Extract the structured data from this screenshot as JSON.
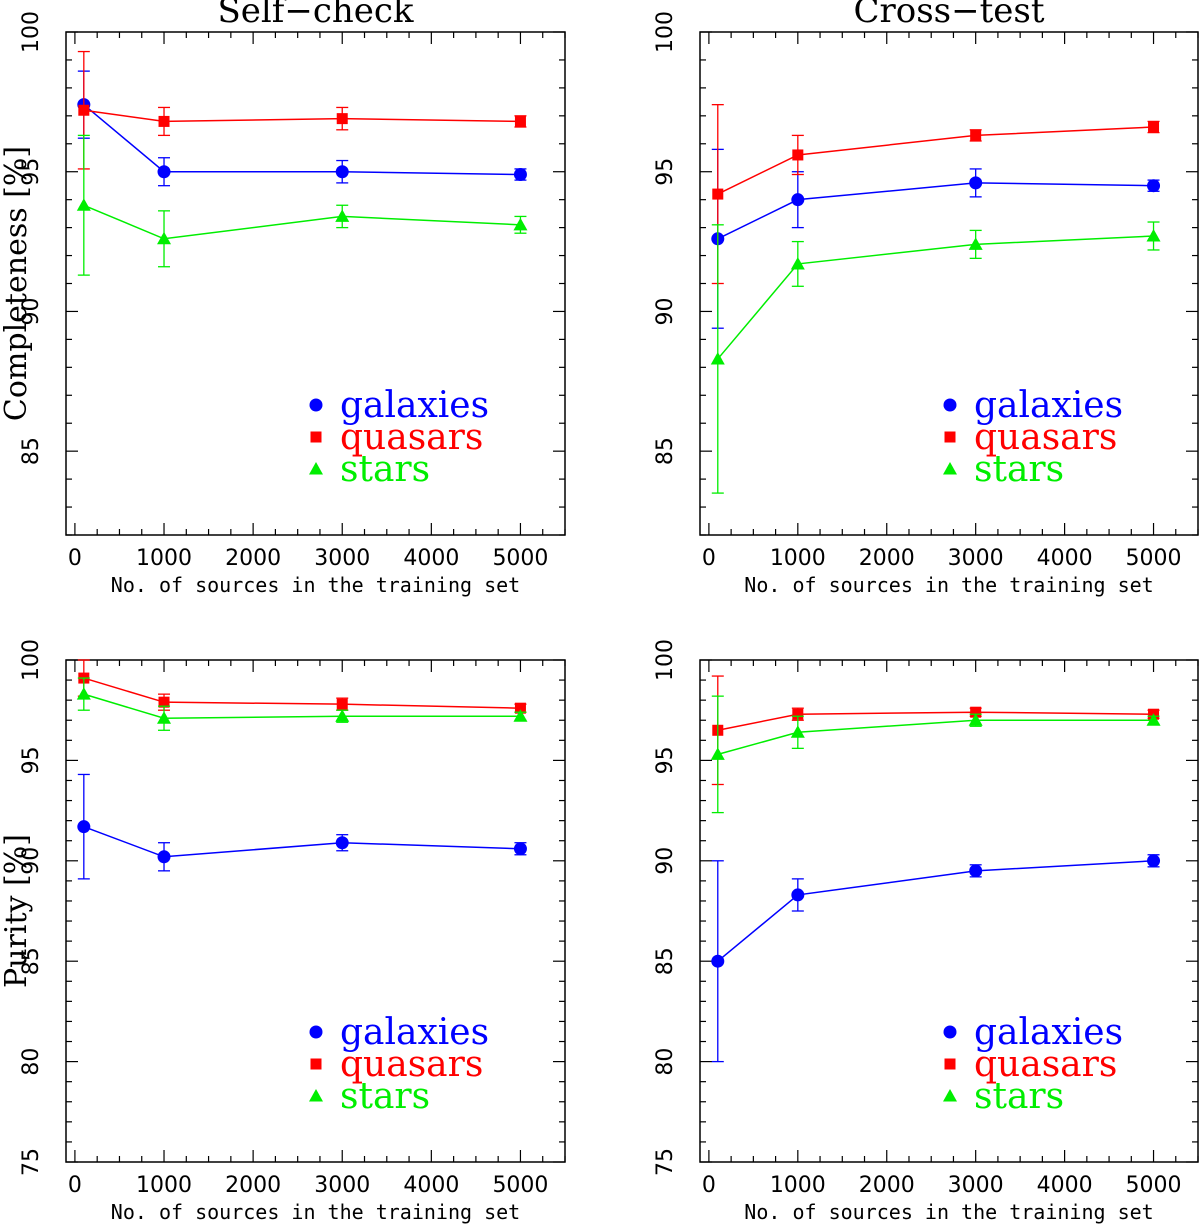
{
  "chart_data": [
    {
      "type": "line",
      "title": "Self−check",
      "xlabel": "No. of sources in the training set",
      "ylabel": "Completeness [%]",
      "xlim": [
        -100,
        5500
      ],
      "ylim": [
        82,
        100
      ],
      "xticks": [
        0,
        1000,
        2000,
        3000,
        4000,
        5000
      ],
      "yticks": [
        85,
        90,
        95,
        100
      ],
      "legend_position": "lower-right",
      "series": [
        {
          "name": "galaxies",
          "color": "#0000ff",
          "marker": "circle",
          "x": [
            100,
            1000,
            3000,
            5000
          ],
          "y": [
            97.4,
            95.0,
            95.0,
            94.9
          ],
          "err": [
            1.2,
            0.5,
            0.4,
            0.2
          ]
        },
        {
          "name": "quasars",
          "color": "#ff0000",
          "marker": "square",
          "x": [
            100,
            1000,
            3000,
            5000
          ],
          "y": [
            97.2,
            96.8,
            96.9,
            96.8
          ],
          "err": [
            2.1,
            0.5,
            0.4,
            0.2
          ]
        },
        {
          "name": "stars",
          "color": "#00ee00",
          "marker": "triangle",
          "x": [
            100,
            1000,
            3000,
            5000
          ],
          "y": [
            93.8,
            92.6,
            93.4,
            93.1
          ],
          "err": [
            2.5,
            1.0,
            0.4,
            0.3
          ]
        }
      ]
    },
    {
      "type": "line",
      "title": "Cross−test",
      "xlabel": "No. of sources in the training set",
      "ylabel": "",
      "xlim": [
        -100,
        5500
      ],
      "ylim": [
        82,
        100
      ],
      "xticks": [
        0,
        1000,
        2000,
        3000,
        4000,
        5000
      ],
      "yticks": [
        85,
        90,
        95,
        100
      ],
      "legend_position": "lower-right",
      "series": [
        {
          "name": "galaxies",
          "color": "#0000ff",
          "marker": "circle",
          "x": [
            100,
            1000,
            3000,
            5000
          ],
          "y": [
            92.6,
            94.0,
            94.6,
            94.5
          ],
          "err": [
            3.2,
            1.0,
            0.5,
            0.2
          ]
        },
        {
          "name": "quasars",
          "color": "#ff0000",
          "marker": "square",
          "x": [
            100,
            1000,
            3000,
            5000
          ],
          "y": [
            94.2,
            95.6,
            96.3,
            96.6
          ],
          "err": [
            3.2,
            0.7,
            0.2,
            0.2
          ]
        },
        {
          "name": "stars",
          "color": "#00ee00",
          "marker": "triangle",
          "x": [
            100,
            1000,
            3000,
            5000
          ],
          "y": [
            88.3,
            91.7,
            92.4,
            92.7
          ],
          "err": [
            4.8,
            0.8,
            0.5,
            0.5
          ]
        }
      ]
    },
    {
      "type": "line",
      "title": "",
      "xlabel": "No. of sources in the training set",
      "ylabel": "Purity [%]",
      "xlim": [
        -100,
        5500
      ],
      "ylim": [
        75,
        100
      ],
      "xticks": [
        0,
        1000,
        2000,
        3000,
        4000,
        5000
      ],
      "yticks": [
        75,
        80,
        85,
        90,
        95,
        100
      ],
      "legend_position": "lower-right",
      "series": [
        {
          "name": "galaxies",
          "color": "#0000ff",
          "marker": "circle",
          "x": [
            100,
            1000,
            3000,
            5000
          ],
          "y": [
            91.7,
            90.2,
            90.9,
            90.6
          ],
          "err": [
            2.6,
            0.7,
            0.4,
            0.3
          ]
        },
        {
          "name": "quasars",
          "color": "#ff0000",
          "marker": "square",
          "x": [
            100,
            1000,
            3000,
            5000
          ],
          "y": [
            99.1,
            97.9,
            97.8,
            97.6
          ],
          "err": [
            0.9,
            0.4,
            0.3,
            0.2
          ]
        },
        {
          "name": "stars",
          "color": "#00ee00",
          "marker": "triangle",
          "x": [
            100,
            1000,
            3000,
            5000
          ],
          "y": [
            98.3,
            97.1,
            97.2,
            97.2
          ],
          "err": [
            0.8,
            0.6,
            0.3,
            0.2
          ]
        }
      ]
    },
    {
      "type": "line",
      "title": "",
      "xlabel": "No. of sources in the training set",
      "ylabel": "",
      "xlim": [
        -100,
        5500
      ],
      "ylim": [
        75,
        100
      ],
      "xticks": [
        0,
        1000,
        2000,
        3000,
        4000,
        5000
      ],
      "yticks": [
        75,
        80,
        85,
        90,
        95,
        100
      ],
      "legend_position": "lower-right",
      "series": [
        {
          "name": "galaxies",
          "color": "#0000ff",
          "marker": "circle",
          "x": [
            100,
            1000,
            3000,
            5000
          ],
          "y": [
            85.0,
            88.3,
            89.5,
            90.0
          ],
          "err": [
            5.0,
            0.8,
            0.3,
            0.3
          ]
        },
        {
          "name": "quasars",
          "color": "#ff0000",
          "marker": "square",
          "x": [
            100,
            1000,
            3000,
            5000
          ],
          "y": [
            96.5,
            97.3,
            97.4,
            97.3
          ],
          "err": [
            2.7,
            0.3,
            0.2,
            0.2
          ]
        },
        {
          "name": "stars",
          "color": "#00ee00",
          "marker": "triangle",
          "x": [
            100,
            1000,
            3000,
            5000
          ],
          "y": [
            95.3,
            96.4,
            97.0,
            97.0
          ],
          "err": [
            2.9,
            0.8,
            0.3,
            0.2
          ]
        }
      ]
    }
  ]
}
